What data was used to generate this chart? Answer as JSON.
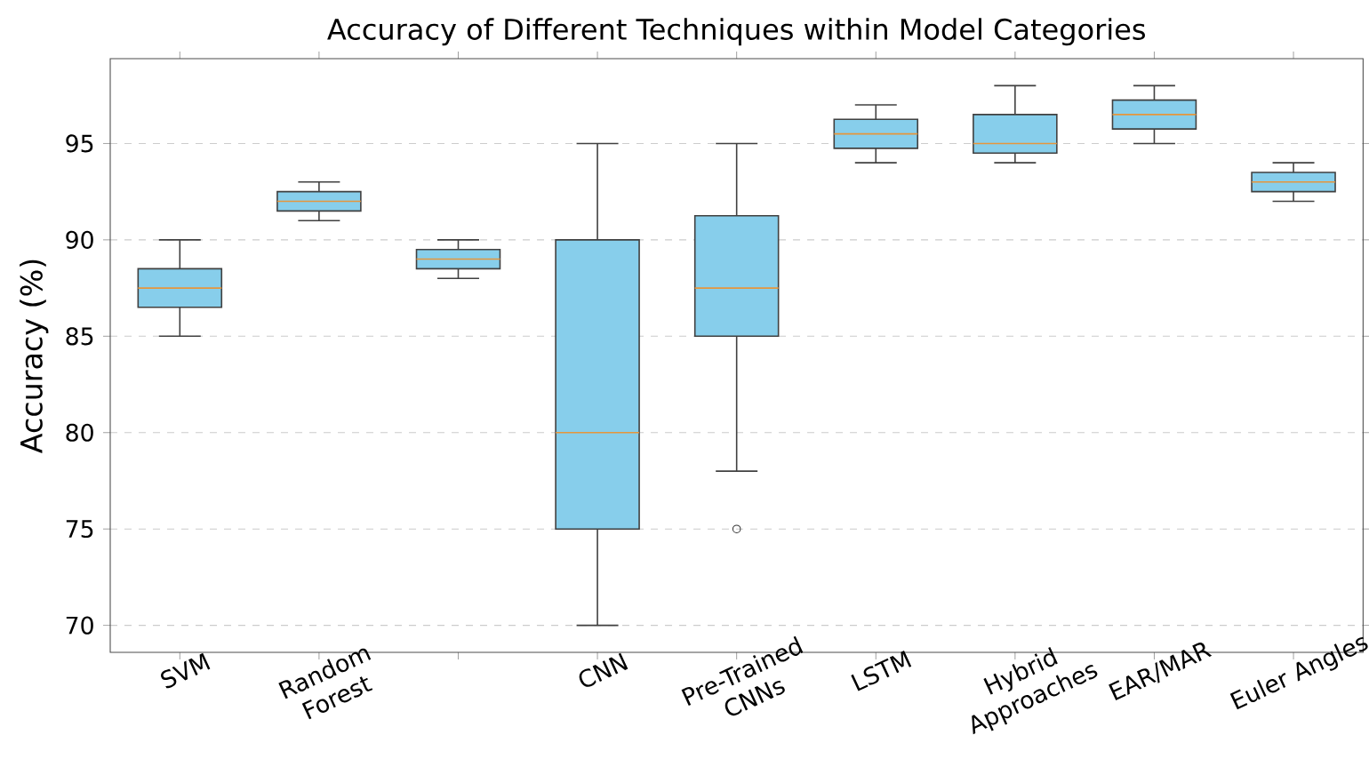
{
  "chart_data": {
    "type": "box",
    "title": "Accuracy of Different Techniques within Model Categories",
    "ylabel": "Accuracy (%)",
    "categories": [
      "SVM",
      "Random Forest",
      null,
      "CNN",
      "Pre-Trained CNNs",
      "LSTM",
      "Hybrid Approaches",
      "EAR/MAR",
      "Euler Angles"
    ],
    "boxes": [
      {
        "low": 85,
        "q1": 86.5,
        "median": 87.5,
        "q3": 88.5,
        "high": 90
      },
      {
        "low": 91,
        "q1": 91.5,
        "median": 92,
        "q3": 92.5,
        "high": 93
      },
      {
        "low": 88,
        "q1": 88.5,
        "median": 89,
        "q3": 89.5,
        "high": 90
      },
      {
        "low": 70,
        "q1": 75,
        "median": 80,
        "q3": 90,
        "high": 95
      },
      {
        "low": 78,
        "q1": 85,
        "median": 87.5,
        "q3": 91.25,
        "high": 95,
        "outliers": [
          75
        ]
      },
      {
        "low": 94,
        "q1": 94.75,
        "median": 95.5,
        "q3": 96.25,
        "high": 97
      },
      {
        "low": 94,
        "q1": 94.5,
        "median": 95,
        "q3": 96.5,
        "high": 98
      },
      {
        "low": 95,
        "q1": 95.75,
        "median": 96.5,
        "q3": 97.25,
        "high": 98
      },
      {
        "low": 92,
        "q1": 92.5,
        "median": 93,
        "q3": 93.5,
        "high": 94
      }
    ],
    "color": "#87ceeb",
    "ylim": [
      68.6,
      99.4
    ],
    "yticks": [
      70,
      75,
      80,
      85,
      90,
      95
    ],
    "grid": "y"
  }
}
